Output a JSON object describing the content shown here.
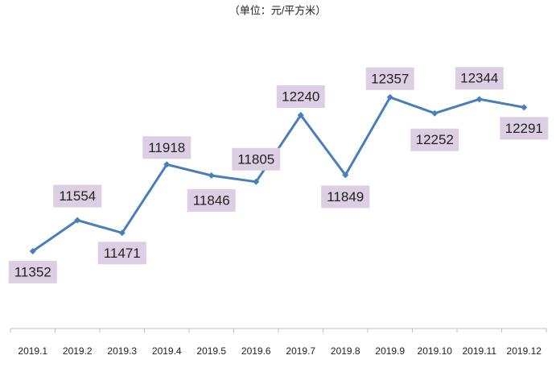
{
  "chart_data": {
    "type": "line",
    "subtitle": "（单位：元/平方米）",
    "categories": [
      "2019.1",
      "2019.2",
      "2019.3",
      "2019.4",
      "2019.5",
      "2019.6",
      "2019.7",
      "2019.8",
      "2019.9",
      "2019.10",
      "2019.11",
      "2019.12"
    ],
    "values": [
      11352,
      11554,
      11471,
      11918,
      11846,
      11805,
      12240,
      11849,
      12357,
      12252,
      12344,
      12291
    ],
    "color": "#4a7ebb",
    "label_background": "#dccfe3",
    "ylim": [
      10847,
      12850
    ]
  }
}
